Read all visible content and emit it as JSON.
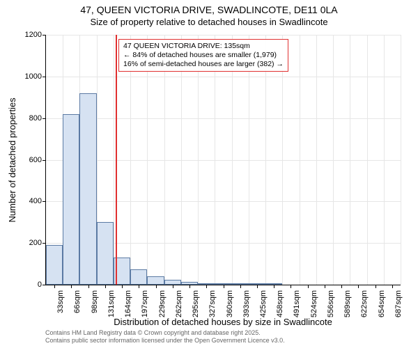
{
  "title_main": "47, QUEEN VICTORIA DRIVE, SWADLINCOTE, DE11 0LA",
  "title_sub": "Size of property relative to detached houses in Swadlincote",
  "ylabel": "Number of detached properties",
  "xlabel": "Distribution of detached houses by size in Swadlincote",
  "footer_line1": "Contains HM Land Registry data © Crown copyright and database right 2025.",
  "footer_line2": "Contains public sector information licensed under the Open Government Licence v3.0.",
  "chart": {
    "type": "histogram",
    "ylim": [
      0,
      1200
    ],
    "yticks": [
      0,
      200,
      400,
      600,
      800,
      1000,
      1200
    ],
    "bar_fill": "#d6e2f2",
    "bar_border": "#5b7aa3",
    "grid_color": "#e6e6e6",
    "background": "#ffffff",
    "categories": [
      "33sqm",
      "66sqm",
      "98sqm",
      "131sqm",
      "164sqm",
      "197sqm",
      "229sqm",
      "262sqm",
      "295sqm",
      "327sqm",
      "360sqm",
      "393sqm",
      "425sqm",
      "458sqm",
      "491sqm",
      "524sqm",
      "556sqm",
      "589sqm",
      "622sqm",
      "654sqm",
      "687sqm"
    ],
    "values": [
      190,
      820,
      920,
      300,
      130,
      75,
      40,
      22,
      12,
      8,
      5,
      3,
      2,
      2,
      1,
      1,
      1,
      1,
      1,
      1,
      0
    ],
    "marker": {
      "value": 135,
      "color": "#e03030",
      "label_line1": "47 QUEEN VICTORIA DRIVE: 135sqm",
      "label_line2": "← 84% of detached houses are smaller (1,979)",
      "label_line3": "16% of semi-detached houses are larger (382) →"
    }
  }
}
